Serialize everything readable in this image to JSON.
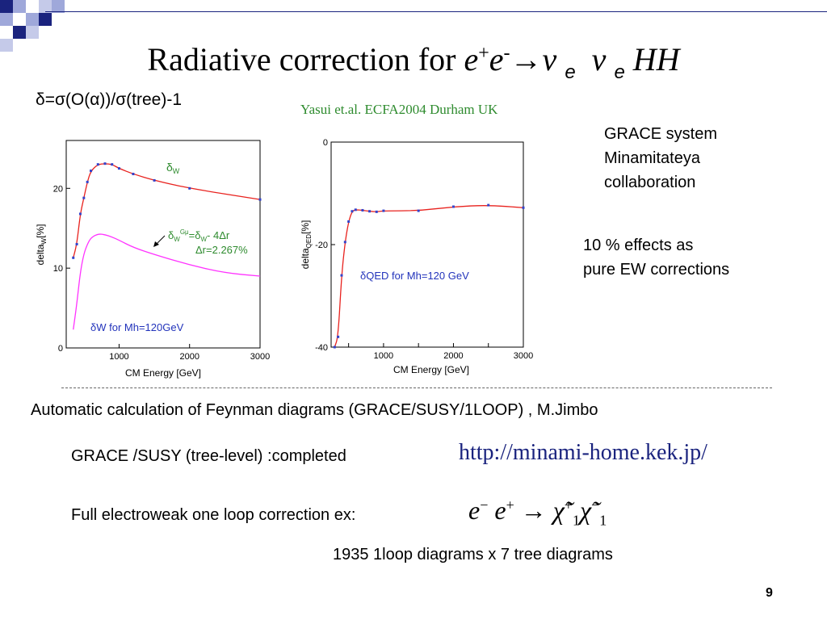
{
  "slide": {
    "title_text": "Radiative correction for ",
    "title_beam": "e",
    "title_beam_plus": "+",
    "title_beam2": "e",
    "title_beam2_minus": "-",
    "title_arrow": "→",
    "title_nu1": "ν",
    "title_nu_sub1": "e",
    "title_nu2": "ν",
    "title_nu_sub2": "e",
    "title_hh": "HH",
    "formula": "δ=σ(O(α))/σ(tree)-1",
    "citation": "Yasui et.al. ECFA2004 Durham UK",
    "grace_lines": [
      "GRACE system",
      "Minamitateya",
      "collaboration"
    ],
    "effects_lines": [
      "10 % effects as",
      "pure EW corrections"
    ],
    "automatic": "Automatic calculation of Feynman diagrams (GRACE/SUSY/1LOOP) , M.Jimbo",
    "susy_status": "GRACE /SUSY (tree-level) :completed",
    "url": "http://minami-home.kek.jp/",
    "full_ew": "Full electroweak one loop correction  ex:",
    "reaction": {
      "lhs": "e",
      "lhs_sup1": "−",
      "lhs2": "e",
      "lhs_sup2": "+",
      "arrow": "→",
      "chi": "χ̃",
      "chi_sup1": "+",
      "chi_sub1": "1",
      "chi_sup2": "−",
      "chi_sub2": "1"
    },
    "diagram_count": "1935 1loop diagrams x 7 tree diagrams",
    "page_number": "9"
  },
  "colors": {
    "title_deco_dark": "#1a237e",
    "title_deco_light": "#9fa8da",
    "curve_red": "#e8221e",
    "curve_magenta": "#ff33ff",
    "marker_blue": "#3344cc",
    "label_green": "#2e8b2e",
    "label_blue": "#2233bb"
  },
  "chart_data": [
    {
      "type": "line",
      "xlabel": "CM Energy [GeV]",
      "ylabel": "delta",
      "ylabel_sub": "W",
      "ylabel_unit": "[%]",
      "xticks": [
        "1000",
        "2000",
        "3000"
      ],
      "xtick_values": [
        1000,
        2000,
        3000
      ],
      "yticks": [
        "0",
        "10",
        "20"
      ],
      "ytick_values": [
        0,
        10,
        20
      ],
      "xlim": [
        250,
        3000
      ],
      "ylim": [
        0,
        26
      ],
      "annotations": {
        "deltaW_label": "δ",
        "deltaW_sub": "W",
        "gmu_pre": "δ",
        "gmu_sub1": "W",
        "gmu_sup": "Gμ",
        "gmu_eq": "=δ",
        "gmu_sub2": "W",
        "gmu_tail": "- 4Δr",
        "dr": "Δr=2.267%",
        "legend": "δW  for Mh=120GeV"
      },
      "series": [
        {
          "marker": true,
          "x": [
            350,
            400,
            450,
            500,
            550,
            600,
            700,
            800,
            900,
            1000,
            1200,
            1500,
            2000,
            3000
          ],
          "values": [
            11.3,
            13.0,
            16.8,
            18.8,
            20.8,
            22.2,
            23.0,
            23.1,
            23.0,
            22.5,
            21.8,
            21.0,
            20.0,
            18.6
          ]
        },
        {
          "marker": false,
          "x": [
            350,
            400,
            450,
            500,
            550,
            600,
            700,
            800,
            900,
            1000,
            1200,
            1500,
            2000,
            2500,
            3000
          ],
          "values": [
            2.3,
            5.5,
            9.5,
            11.8,
            13.0,
            13.8,
            14.3,
            14.2,
            13.9,
            13.5,
            12.6,
            11.7,
            10.4,
            9.4,
            9.0
          ]
        }
      ]
    },
    {
      "type": "line",
      "xlabel": "CM Energy [GeV]",
      "ylabel": "delta",
      "ylabel_sub": "QED",
      "ylabel_unit": "[%]",
      "xticks": [
        "500",
        "1000",
        "1500",
        "2000",
        "2500",
        "3000"
      ],
      "xtick_values": [
        500,
        1000,
        1500,
        2000,
        2500,
        3000
      ],
      "xtick_labels_shown": [
        "1000",
        "2000",
        "3000"
      ],
      "yticks": [
        "0",
        "-20",
        "-40"
      ],
      "ytick_values": [
        0,
        -20,
        -40
      ],
      "xlim": [
        250,
        3000
      ],
      "ylim": [
        -40,
        0
      ],
      "annotations": {
        "legend": "δQED for Mh=120 GeV"
      },
      "series": [
        {
          "marker": true,
          "x": [
            300,
            350,
            400,
            450,
            500,
            550,
            600,
            700,
            800,
            900,
            1000,
            1500,
            2000,
            2500,
            3000
          ],
          "values": [
            -40.0,
            -38.0,
            -26.0,
            -19.5,
            -15.5,
            -13.5,
            -13.2,
            -13.3,
            -13.5,
            -13.6,
            -13.4,
            -13.4,
            -12.6,
            -12.3,
            -12.8
          ]
        }
      ]
    }
  ]
}
